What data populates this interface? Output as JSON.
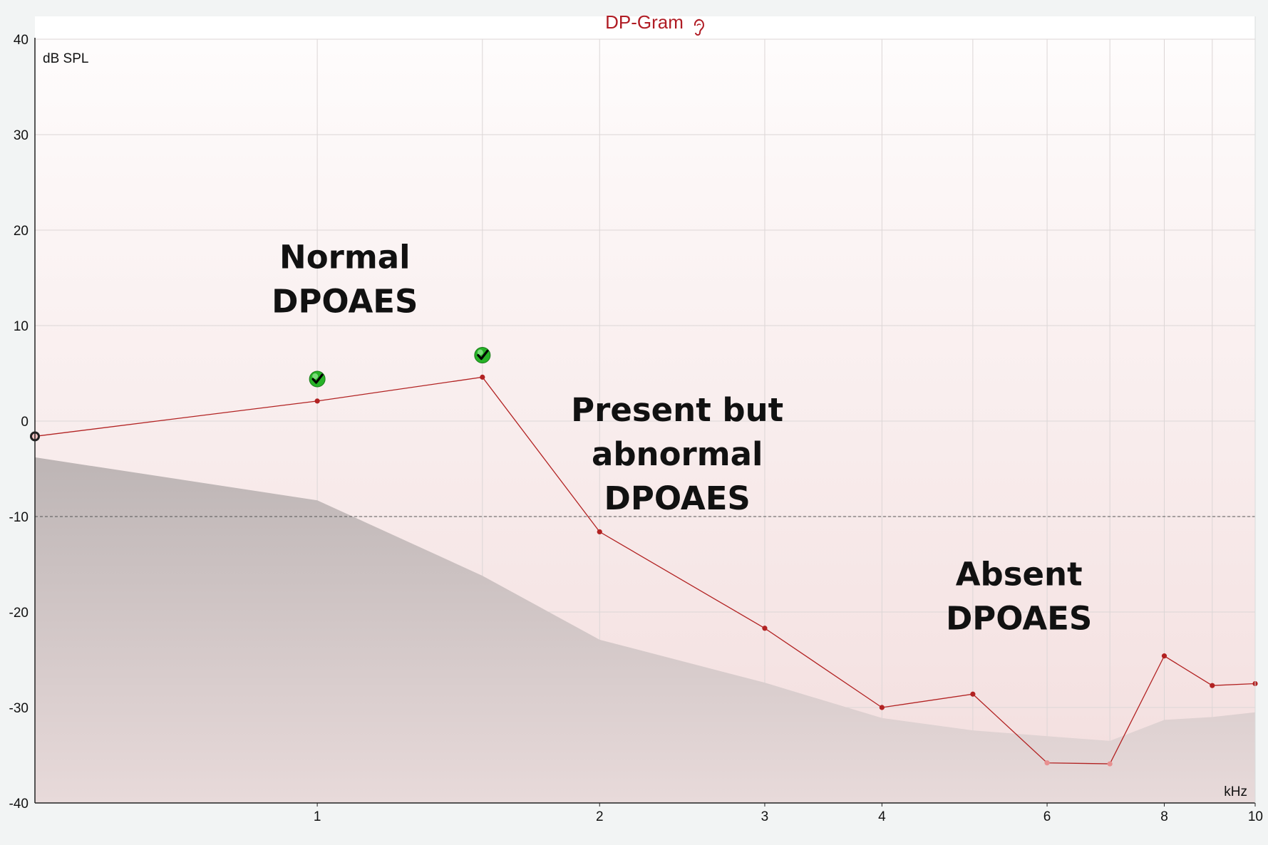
{
  "chart_data": {
    "type": "line",
    "title": "DP-Gram",
    "ylabel": "dB SPL",
    "xlabel": "kHz",
    "x_scale": "log",
    "xlim": [
      0.5,
      10
    ],
    "ylim": [
      -40,
      40
    ],
    "x_ticks": [
      1,
      2,
      3,
      4,
      6,
      8,
      10
    ],
    "x_tick_labels": [
      "1",
      "2",
      "3",
      "4",
      "6",
      "8",
      "10"
    ],
    "y_ticks": [
      40,
      30,
      20,
      10,
      0,
      -10,
      -20,
      -30,
      -40
    ],
    "y_tick_labels": [
      "40",
      "30",
      "20",
      "10",
      "0",
      "-10",
      "-20",
      "-30",
      "-40"
    ],
    "grid": true,
    "reference_line": {
      "y": -10,
      "style": "dashed"
    },
    "series": [
      {
        "x": [
          0.5,
          1.0,
          1.5,
          2.0,
          3.0,
          4.0,
          5.0,
          6.0,
          7.0,
          8.0,
          9.0,
          10.0
        ],
        "values": [
          -1.6,
          2.1,
          4.6,
          -11.6,
          -21.7,
          -30.0,
          -28.6,
          -35.8,
          -35.9,
          -24.6,
          -27.7,
          -27.5
        ],
        "color": "#b22222",
        "faded_points": [
          6.0,
          7.0
        ]
      }
    ],
    "noise_floor": {
      "x": [
        0.5,
        1.0,
        1.5,
        2.0,
        3.0,
        4.0,
        5.0,
        6.0,
        7.0,
        8.0,
        9.0,
        10.0
      ],
      "values": [
        -3.8,
        -8.3,
        -16.2,
        -22.9,
        -27.4,
        -31.1,
        -32.4,
        -33.0,
        -33.5,
        -31.3,
        -31.0,
        -30.5
      ],
      "color": "#b8b0b0"
    },
    "pass_markers": [
      {
        "x": 1.0,
        "y": 4.4
      },
      {
        "x": 1.5,
        "y": 6.9
      }
    ],
    "annotations": [
      {
        "lines": [
          "Normal",
          "DPOAES"
        ],
        "x": 1.07,
        "y": 16.0
      },
      {
        "lines": [
          "Present but",
          "abnormal",
          "DPOAES"
        ],
        "x": 2.42,
        "y": 0.0
      },
      {
        "lines": [
          "Absent",
          "DPOAES"
        ],
        "x": 5.6,
        "y": -17.2
      }
    ],
    "colors": {
      "title": "#b01c24",
      "series": "#b22222",
      "faded_point": "#e89090",
      "check": "#27b227"
    }
  }
}
